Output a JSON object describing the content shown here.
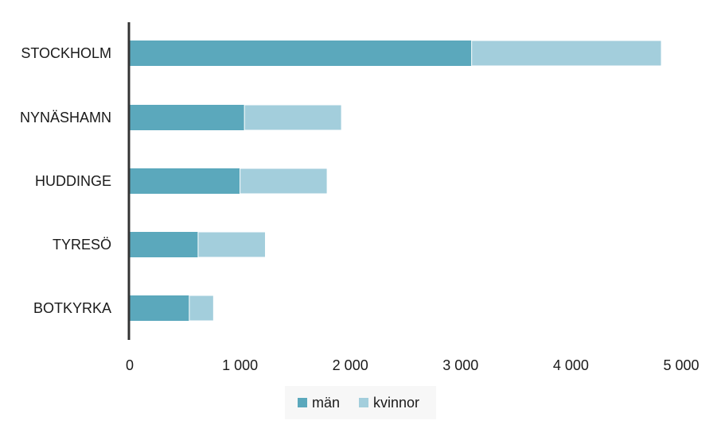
{
  "chart_data": {
    "type": "bar",
    "orientation": "horizontal",
    "stacked": true,
    "categories": [
      "STOCKHOLM",
      "NYNÄSHAMN",
      "HUDDINGE",
      "TYRESÖ",
      "BOTKYRKA"
    ],
    "series": [
      {
        "name": "män",
        "color": "#5ba8bc",
        "values": [
          3100,
          1040,
          1000,
          620,
          540
        ]
      },
      {
        "name": "kvinnor",
        "color": "#a3cedc",
        "values": [
          1720,
          880,
          790,
          610,
          220
        ]
      }
    ],
    "x_ticks": [
      "0",
      "1 000",
      "2 000",
      "3 000",
      "4 000",
      "5 000"
    ],
    "xlim": [
      0,
      5000
    ],
    "title": "",
    "xlabel": "",
    "ylabel": "",
    "grid": false,
    "legend_position": "bottom"
  }
}
